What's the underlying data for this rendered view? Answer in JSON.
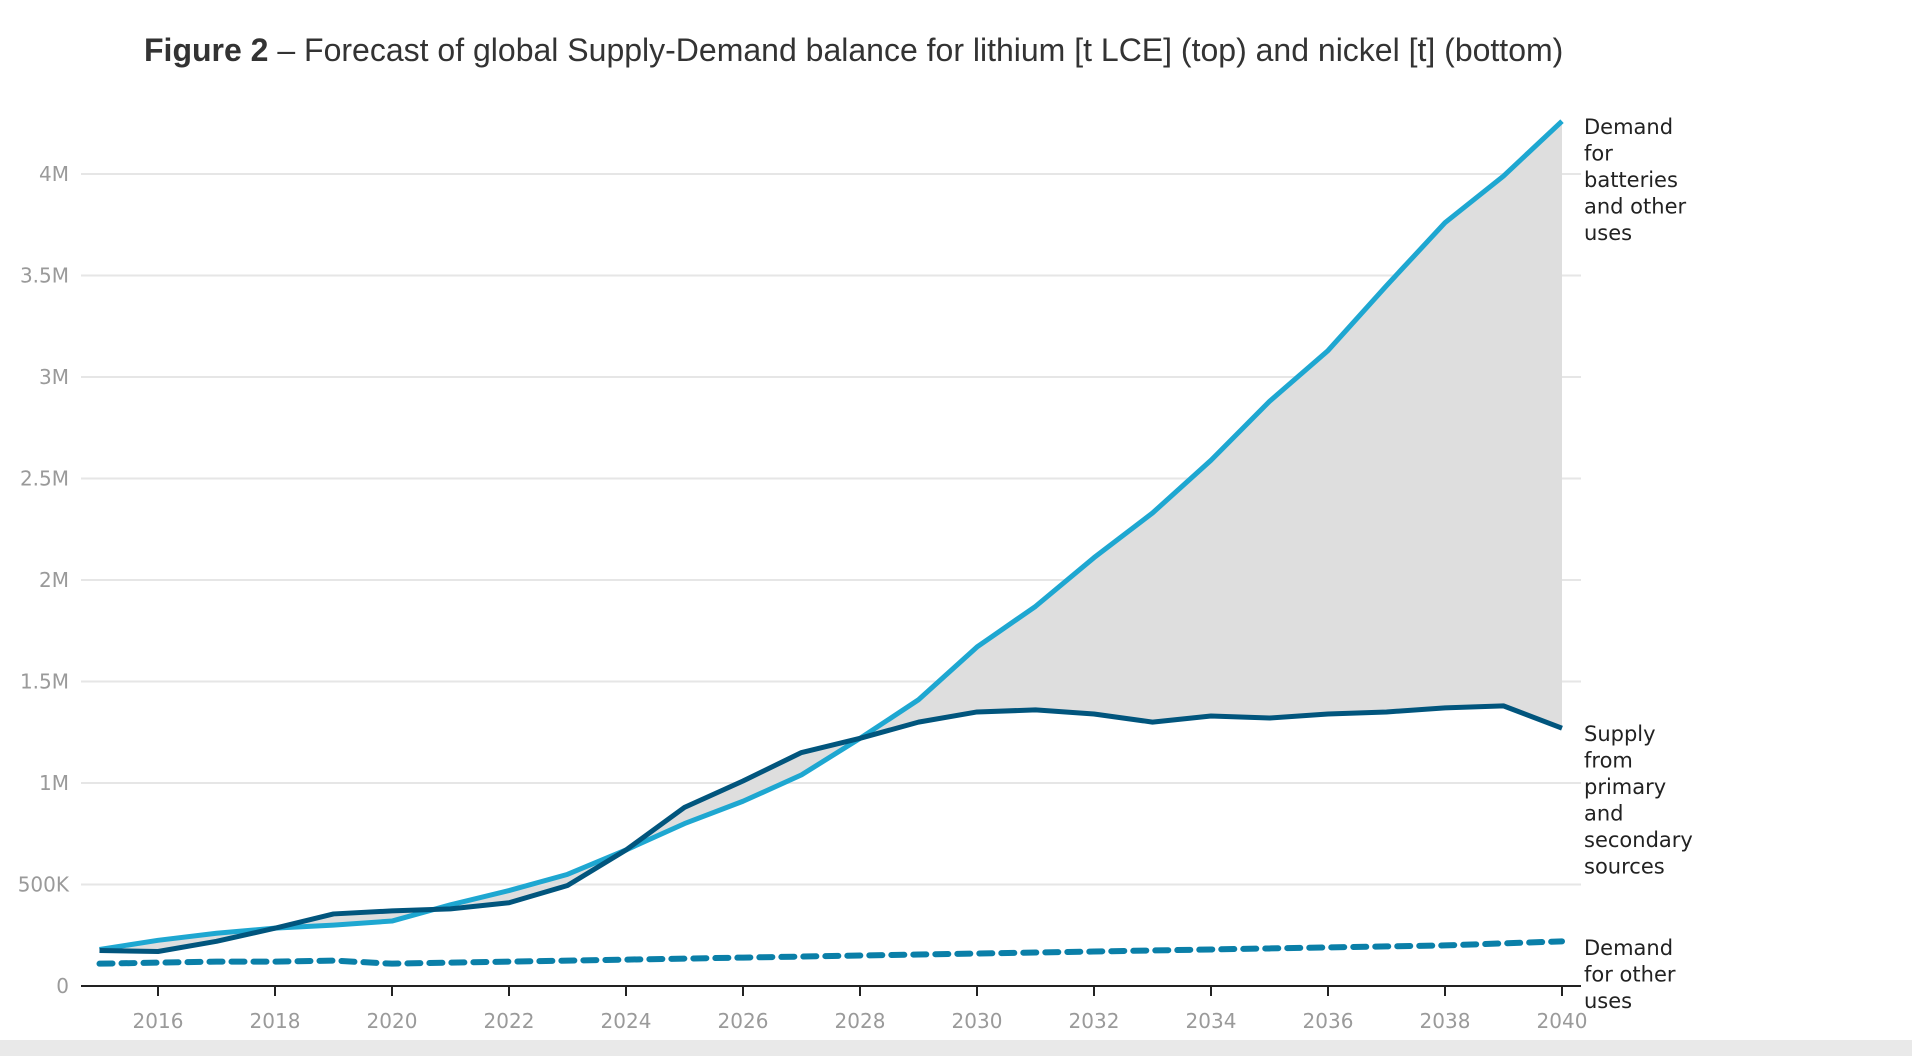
{
  "chart_data": {
    "type": "line",
    "title_bold": "Figure 2",
    "title_rest": " – Forecast of global Supply-Demand balance for lithium [t LCE] (top) and nickel [t] (bottom)",
    "xlabel": "",
    "ylabel": "",
    "x": [
      2015,
      2016,
      2017,
      2018,
      2019,
      2020,
      2021,
      2022,
      2023,
      2024,
      2025,
      2026,
      2027,
      2028,
      2029,
      2030,
      2031,
      2032,
      2033,
      2034,
      2035,
      2036,
      2037,
      2038,
      2039,
      2040
    ],
    "xlim": [
      2015,
      2040
    ],
    "ylim": [
      0,
      4300000
    ],
    "x_ticks": [
      2016,
      2018,
      2020,
      2022,
      2024,
      2026,
      2028,
      2030,
      2032,
      2034,
      2036,
      2038,
      2040
    ],
    "x_tick_labels": [
      "2016",
      "2018",
      "2020",
      "2022",
      "2024",
      "2026",
      "2028",
      "2030",
      "2032",
      "2034",
      "2036",
      "2038",
      "2040"
    ],
    "y_ticks": [
      0,
      500000,
      1000000,
      1500000,
      2000000,
      2500000,
      3000000,
      3500000,
      4000000
    ],
    "y_tick_labels": [
      "0",
      "500K",
      "1M",
      "1.5M",
      "2M",
      "2.5M",
      "3M",
      "3.5M",
      "4M"
    ],
    "grid": true,
    "legend": "direct-labels-right",
    "shaded_gap": {
      "between": [
        "Demand for batteries and other uses",
        "Supply from primary and secondary sources"
      ],
      "color": "#dedede"
    },
    "series": [
      {
        "name": "Demand for batteries and other uses",
        "label_lines": [
          "Demand",
          "for",
          "batteries",
          "and other",
          "uses"
        ],
        "color": "#1ea7d1",
        "style": "solid",
        "values": [
          180000,
          225000,
          260000,
          285000,
          300000,
          320000,
          400000,
          470000,
          550000,
          670000,
          800000,
          910000,
          1040000,
          1220000,
          1410000,
          1670000,
          1870000,
          2110000,
          2330000,
          2590000,
          2880000,
          3130000,
          3450000,
          3760000,
          3990000,
          4260000
        ]
      },
      {
        "name": "Supply from primary and secondary sources",
        "label_lines": [
          "Supply",
          "from",
          "primary",
          "and",
          "secondary",
          "sources"
        ],
        "color": "#01557d",
        "style": "solid",
        "values": [
          175000,
          170000,
          220000,
          285000,
          355000,
          370000,
          380000,
          410000,
          495000,
          670000,
          880000,
          1010000,
          1150000,
          1220000,
          1300000,
          1350000,
          1360000,
          1340000,
          1300000,
          1330000,
          1320000,
          1340000,
          1350000,
          1370000,
          1380000,
          1270000
        ]
      },
      {
        "name": "Demand for other uses",
        "label_lines": [
          "Demand",
          "for other",
          "uses"
        ],
        "color": "#0a7fa8",
        "style": "dashed",
        "values": [
          110000,
          115000,
          120000,
          120000,
          125000,
          110000,
          115000,
          120000,
          125000,
          130000,
          135000,
          140000,
          145000,
          150000,
          155000,
          160000,
          165000,
          170000,
          175000,
          180000,
          185000,
          190000,
          195000,
          200000,
          210000,
          220000
        ]
      }
    ]
  }
}
